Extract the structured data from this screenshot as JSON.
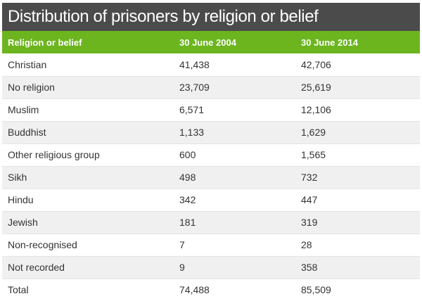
{
  "chart_data": {
    "type": "table",
    "title": "Distribution of prisoners by religion or belief",
    "columns": [
      "Religion or belief",
      "30 June 2004",
      "30 June 2014"
    ],
    "rows": [
      [
        "Christian",
        "41,438",
        "42,706"
      ],
      [
        "No religion",
        "23,709",
        "25,619"
      ],
      [
        "Muslim",
        "6,571",
        "12,106"
      ],
      [
        "Buddhist",
        "1,133",
        "1,629"
      ],
      [
        "Other religious group",
        "600",
        "1,565"
      ],
      [
        "Sikh",
        "498",
        "732"
      ],
      [
        "Hindu",
        "342",
        "447"
      ],
      [
        "Jewish",
        "181",
        "319"
      ],
      [
        "Non-recognised",
        "7",
        "28"
      ],
      [
        "Not recorded",
        "9",
        "358"
      ],
      [
        "Total",
        "74,488",
        "85,509"
      ]
    ]
  },
  "colors": {
    "title_bg": "#4b4b4b",
    "header_bg": "#6cb51f",
    "alt_row_bg": "#f0f0f0",
    "text": "#333333"
  }
}
